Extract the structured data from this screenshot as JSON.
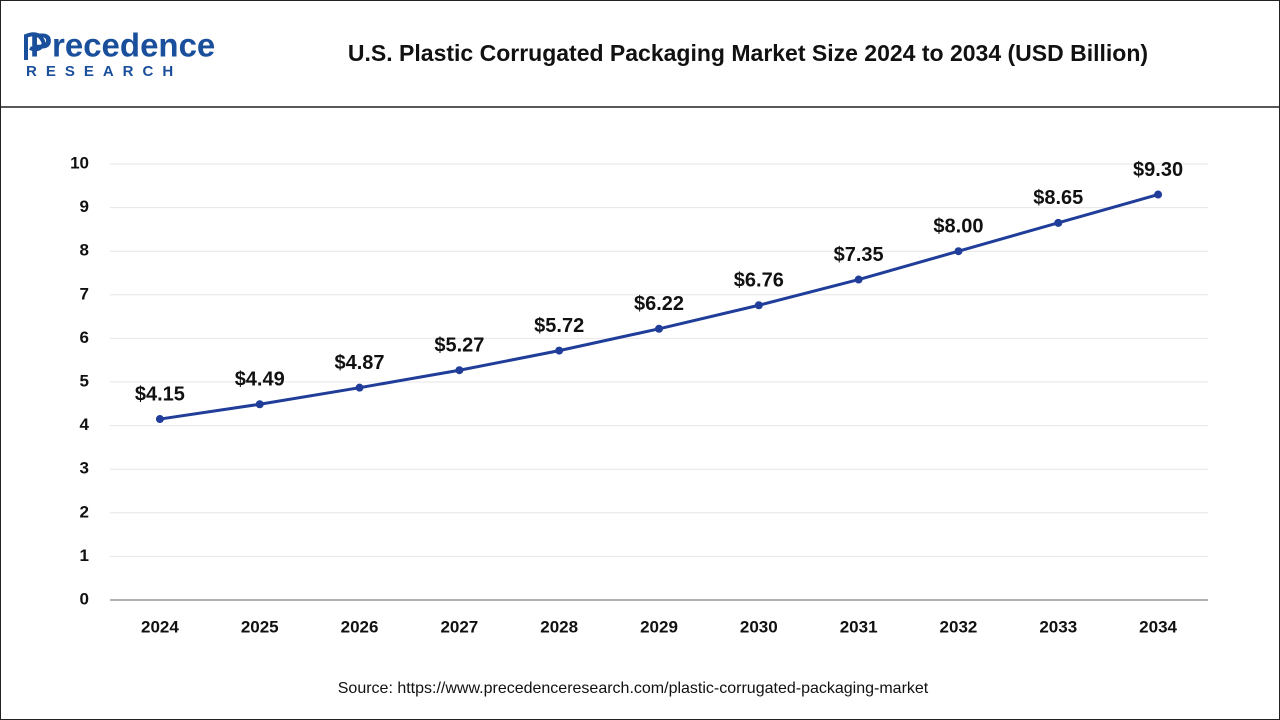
{
  "logo": {
    "name": "Precedence",
    "tagline": "RESEARCH"
  },
  "chart_data": {
    "type": "line",
    "title": "U.S. Plastic Corrugated Packaging Market Size 2024 to 2034 (USD Billion)",
    "categories": [
      "2024",
      "2025",
      "2026",
      "2027",
      "2028",
      "2029",
      "2030",
      "2031",
      "2032",
      "2033",
      "2034"
    ],
    "values": [
      4.15,
      4.49,
      4.87,
      5.27,
      5.72,
      6.22,
      6.76,
      7.35,
      8.0,
      8.65,
      9.3
    ],
    "value_labels": [
      "$4.15",
      "$4.49",
      "$4.87",
      "$5.27",
      "$5.72",
      "$6.22",
      "$6.76",
      "$7.35",
      "$8.00",
      "$8.65",
      "$9.30"
    ],
    "color": "#1f3d99",
    "ylim": [
      0,
      10
    ],
    "yticks": [
      0,
      1,
      2,
      3,
      4,
      5,
      6,
      7,
      8,
      9,
      10
    ],
    "grid": true
  },
  "source": "Source: https://www.precedenceresearch.com/plastic-corrugated-packaging-market"
}
